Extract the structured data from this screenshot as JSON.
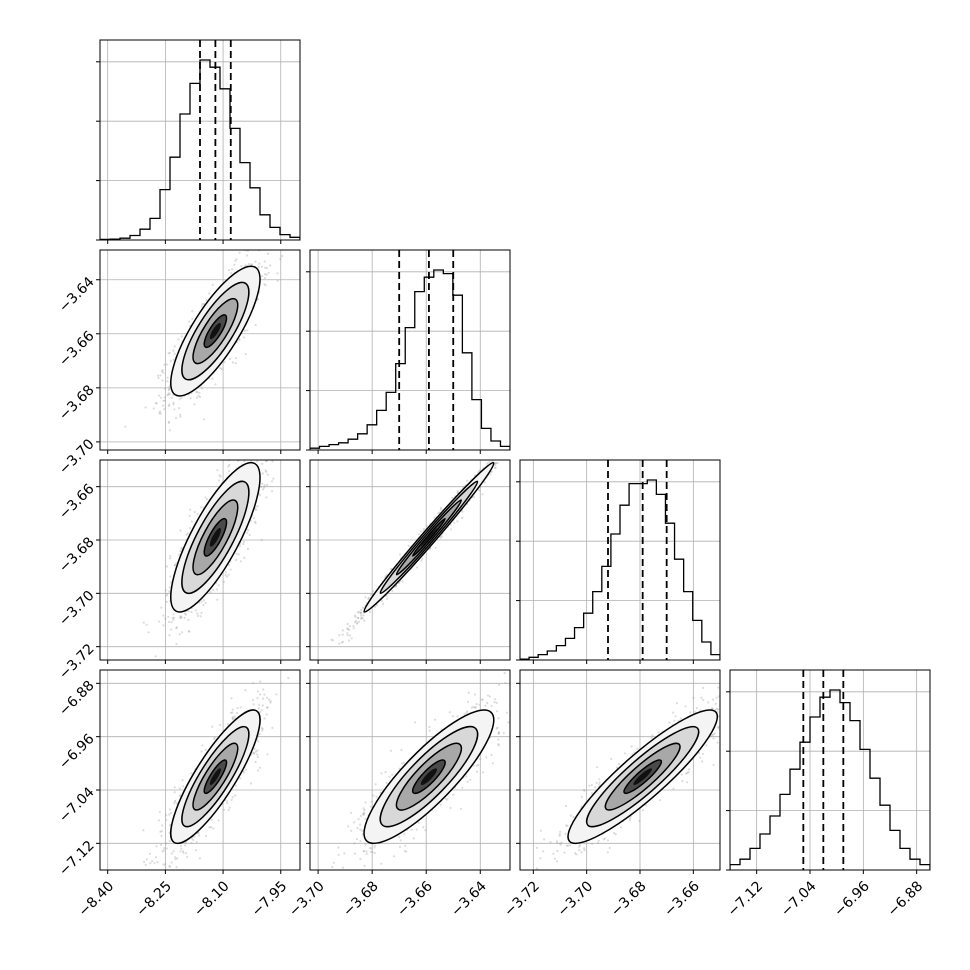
{
  "chart_data": {
    "type": "corner",
    "parameters": [
      {
        "range": [
          -8.42,
          -7.9
        ],
        "median": -8.12,
        "quantiles": [
          -8.16,
          -8.12,
          -8.08
        ],
        "ticks": [
          -8.4,
          -8.25,
          -8.1,
          -7.95
        ],
        "tick_labels": [
          "−8.40",
          "−8.25",
          "−8.10",
          "−7.95"
        ]
      },
      {
        "range": [
          -3.703,
          -3.629
        ],
        "median": -3.659,
        "quantiles": [
          -3.67,
          -3.659,
          -3.65
        ],
        "ticks": [
          -3.7,
          -3.68,
          -3.66,
          -3.64
        ],
        "tick_labels": [
          "−3.70",
          "−3.68",
          "−3.66",
          "−3.64"
        ]
      },
      {
        "range": [
          -3.725,
          -3.65
        ],
        "median": -3.679,
        "quantiles": [
          -3.692,
          -3.679,
          -3.67
        ],
        "ticks": [
          -3.72,
          -3.7,
          -3.68,
          -3.66
        ],
        "tick_labels": [
          "−3.72",
          "−3.70",
          "−3.68",
          "−3.66"
        ]
      },
      {
        "range": [
          -7.16,
          -6.86
        ],
        "median": -7.02,
        "quantiles": [
          -7.05,
          -7.02,
          -6.99
        ],
        "ticks": [
          -7.12,
          -7.04,
          -6.96,
          -6.88
        ],
        "tick_labels": [
          "−7.12",
          "−7.04",
          "−6.96",
          "−6.88"
        ]
      }
    ],
    "histograms": [
      [
        0.003,
        0.005,
        0.01,
        0.025,
        0.06,
        0.12,
        0.28,
        0.46,
        0.7,
        0.87,
        1.0,
        0.96,
        0.84,
        0.62,
        0.43,
        0.29,
        0.14,
        0.07,
        0.03,
        0.015
      ],
      [
        0.01,
        0.02,
        0.03,
        0.04,
        0.06,
        0.09,
        0.14,
        0.22,
        0.32,
        0.48,
        0.68,
        0.88,
        0.96,
        1.0,
        0.98,
        0.86,
        0.54,
        0.28,
        0.12,
        0.05,
        0.02
      ],
      [
        0.005,
        0.015,
        0.03,
        0.05,
        0.08,
        0.12,
        0.18,
        0.26,
        0.38,
        0.52,
        0.7,
        0.86,
        0.98,
        0.98,
        1.0,
        0.92,
        0.76,
        0.56,
        0.38,
        0.22,
        0.1,
        0.03
      ],
      [
        0.03,
        0.06,
        0.12,
        0.2,
        0.3,
        0.42,
        0.56,
        0.71,
        0.85,
        0.96,
        1.0,
        0.93,
        0.83,
        0.67,
        0.51,
        0.36,
        0.22,
        0.12,
        0.06,
        0.03
      ]
    ],
    "correlations": {
      "1-0": 0.8,
      "2-0": 0.8,
      "2-1": 0.99,
      "3-0": 0.85,
      "3-1": 0.85,
      "3-2": 0.9
    },
    "spreads": [
      0.058,
      0.012,
      0.014,
      0.05
    ],
    "grid": true
  }
}
